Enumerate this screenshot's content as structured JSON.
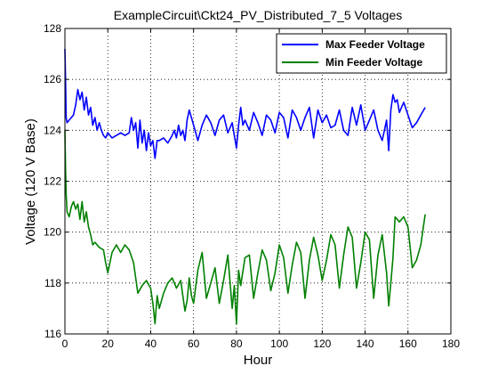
{
  "chart_data": {
    "type": "line",
    "title": "ExampleCircuit\\Ckt24_PV_Distributed_7_5 Voltages",
    "xlabel": "Hour",
    "ylabel": "Voltage (120 V Base)",
    "xlim": [
      0,
      180
    ],
    "ylim": [
      116,
      128
    ],
    "xticks": [
      0,
      20,
      40,
      60,
      80,
      100,
      120,
      140,
      160,
      180
    ],
    "yticks": [
      116,
      118,
      120,
      122,
      124,
      126,
      128
    ],
    "grid": true,
    "legend_position": "top-right",
    "series": [
      {
        "name": "Max Feeder Voltage",
        "color": "#0000ff",
        "x": [
          0,
          0.3,
          0.6,
          1,
          2,
          3,
          4,
          5,
          6,
          7,
          8,
          9,
          10,
          11,
          12,
          13,
          14,
          15,
          16,
          17,
          18,
          19,
          20,
          22,
          24,
          26,
          28,
          30,
          31,
          32,
          33,
          34,
          35,
          36,
          37,
          38,
          39,
          40,
          41,
          42,
          43,
          44,
          46,
          48,
          50,
          51,
          52,
          53,
          54,
          55,
          56,
          57,
          58,
          60,
          62,
          64,
          66,
          68,
          70,
          72,
          74,
          76,
          78,
          79,
          80,
          81,
          82,
          83,
          84,
          86,
          88,
          90,
          92,
          94,
          96,
          98,
          100,
          102,
          104,
          106,
          108,
          110,
          112,
          114,
          116,
          118,
          120,
          122,
          124,
          126,
          128,
          130,
          132,
          134,
          136,
          138,
          140,
          142,
          144,
          146,
          148,
          150,
          151,
          152,
          153,
          154,
          155,
          156,
          157,
          158,
          160,
          162,
          164,
          166,
          168
        ],
        "values": [
          127.2,
          126.0,
          124.5,
          124.3,
          124.4,
          124.5,
          124.6,
          125.0,
          125.6,
          125.2,
          125.5,
          124.8,
          125.3,
          124.6,
          124.9,
          124.2,
          124.5,
          124.0,
          124.3,
          124.0,
          123.8,
          123.7,
          123.9,
          123.7,
          123.8,
          123.9,
          123.8,
          123.9,
          124.5,
          124.0,
          124.3,
          123.3,
          124.4,
          123.5,
          124.0,
          123.2,
          123.9,
          123.4,
          123.6,
          122.9,
          123.6,
          123.6,
          123.7,
          123.5,
          123.8,
          124.0,
          123.7,
          124.2,
          123.8,
          124.0,
          123.6,
          124.4,
          124.8,
          124.2,
          123.6,
          124.2,
          124.6,
          124.3,
          123.8,
          124.4,
          124.6,
          123.9,
          124.3,
          123.8,
          123.3,
          124.2,
          124.9,
          124.2,
          124.4,
          124.0,
          124.7,
          124.3,
          123.8,
          124.6,
          124.4,
          123.9,
          124.7,
          124.5,
          123.7,
          124.8,
          124.5,
          124.0,
          124.5,
          124.9,
          123.7,
          124.8,
          124.3,
          124.6,
          124.1,
          124.2,
          124.8,
          124.0,
          123.8,
          124.9,
          124.2,
          125.0,
          124.0,
          124.4,
          124.8,
          124.0,
          123.6,
          124.4,
          123.2,
          124.8,
          125.4,
          125.1,
          125.2,
          124.7,
          124.9,
          125.1,
          124.6,
          124.1,
          124.3,
          124.6,
          124.9
        ]
      },
      {
        "name": "Min Feeder Voltage",
        "color": "#008000",
        "x": [
          0,
          0.3,
          0.6,
          1,
          2,
          3,
          4,
          5,
          6,
          7,
          8,
          9,
          10,
          11,
          12,
          13,
          14,
          16,
          18,
          19,
          20,
          21,
          22,
          24,
          26,
          28,
          30,
          32,
          34,
          36,
          38,
          40,
          41,
          42,
          43,
          44,
          46,
          48,
          50,
          52,
          54,
          56,
          57,
          58,
          59,
          60,
          62,
          64,
          66,
          68,
          70,
          72,
          74,
          76,
          78,
          79,
          80,
          81,
          82,
          84,
          86,
          88,
          90,
          92,
          94,
          96,
          98,
          100,
          102,
          104,
          106,
          108,
          110,
          112,
          114,
          116,
          118,
          120,
          122,
          124,
          126,
          128,
          130,
          132,
          134,
          136,
          138,
          140,
          142,
          144,
          146,
          148,
          150,
          151,
          152,
          153,
          154,
          156,
          158,
          160,
          162,
          164,
          166,
          168
        ],
        "values": [
          124.0,
          122.5,
          121.5,
          120.8,
          120.6,
          121.0,
          121.2,
          120.9,
          121.1,
          120.5,
          121.2,
          120.4,
          120.8,
          120.2,
          119.9,
          119.5,
          119.6,
          119.4,
          119.3,
          118.8,
          118.4,
          118.8,
          119.2,
          119.5,
          119.2,
          119.5,
          119.3,
          118.8,
          117.6,
          117.9,
          118.1,
          117.8,
          117.2,
          116.4,
          117.5,
          117.0,
          117.6,
          118.0,
          118.2,
          117.8,
          118.1,
          116.9,
          117.3,
          118.2,
          117.5,
          117.2,
          118.5,
          119.2,
          117.4,
          118.0,
          118.6,
          117.2,
          118.1,
          119.1,
          117.0,
          117.9,
          116.4,
          118.5,
          117.9,
          119.0,
          119.1,
          117.4,
          118.4,
          119.3,
          118.9,
          117.7,
          118.4,
          119.5,
          119.0,
          117.6,
          118.7,
          119.6,
          119.2,
          117.4,
          118.9,
          119.8,
          119.1,
          118.1,
          118.9,
          119.9,
          119.5,
          117.8,
          119.1,
          120.2,
          119.8,
          117.8,
          118.8,
          120.0,
          119.7,
          117.4,
          119.1,
          119.9,
          118.4,
          117.1,
          118.0,
          119.0,
          120.6,
          120.4,
          120.6,
          120.2,
          118.6,
          118.9,
          119.5,
          120.7
        ]
      }
    ]
  }
}
